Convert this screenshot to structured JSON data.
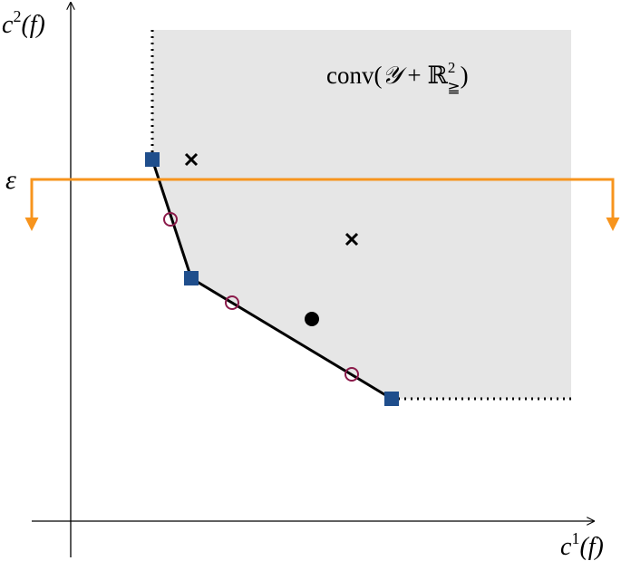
{
  "labels": {
    "y_axis": {
      "base": "c",
      "sup": "2",
      "rest": "(f)"
    },
    "x_axis": {
      "base": "c",
      "sup": "1",
      "rest": "(f)"
    },
    "epsilon": "ε",
    "region": {
      "prefix": "conv(",
      "set": "𝒴",
      "plus": " + ",
      "reals": "ℝ",
      "sup": "2",
      "sub": "≧",
      "suffix": ")"
    }
  }
}
